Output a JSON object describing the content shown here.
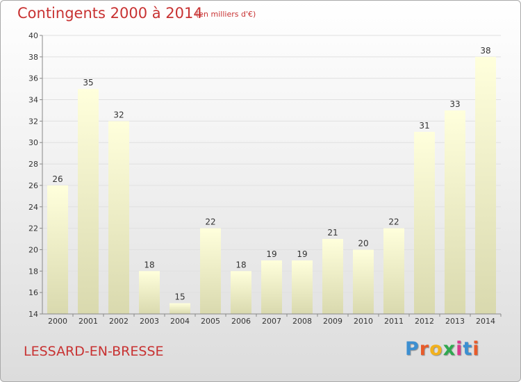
{
  "header": {
    "title": "Contingents 2000 à 2014",
    "subtitle": "(en milliers d'€)"
  },
  "footer": {
    "commune": "LESSARD-EN-BRESSE",
    "brand": "Proxiti",
    "brand_colors": [
      "#3c8fd1",
      "#e85b2a",
      "#f2b11d",
      "#2fa84f",
      "#d93a8c",
      "#3c8fd1",
      "#e85b2a"
    ]
  },
  "chart_data": {
    "type": "bar",
    "categories": [
      "2000",
      "2001",
      "2002",
      "2003",
      "2004",
      "2005",
      "2006",
      "2007",
      "2008",
      "2009",
      "2010",
      "2011",
      "2012",
      "2013",
      "2014"
    ],
    "values": [
      26,
      35,
      32,
      18,
      15,
      22,
      18,
      19,
      19,
      21,
      20,
      22,
      31,
      33,
      38
    ],
    "ylim": [
      14,
      40
    ],
    "yticks": [
      14,
      16,
      18,
      20,
      22,
      24,
      26,
      28,
      30,
      32,
      34,
      36,
      38,
      40
    ],
    "grid": true,
    "bar_color_top": "#ffffdc",
    "bar_color_bottom": "#d9d9ae",
    "axis_color": "#888888",
    "grid_color": "#e0e0e0"
  }
}
